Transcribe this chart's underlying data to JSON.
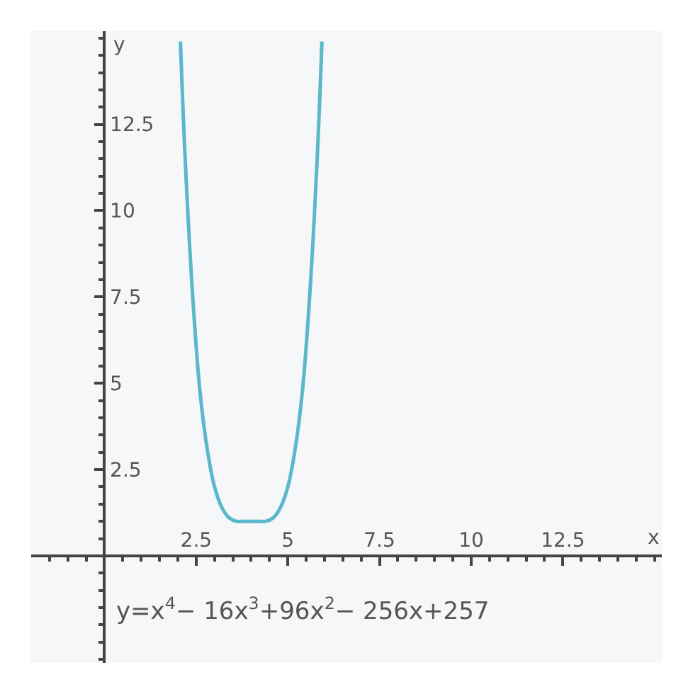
{
  "chart_data": {
    "type": "line",
    "xlabel": "x",
    "ylabel": "y",
    "x": [
      2.07,
      2.2,
      2.4,
      2.6,
      2.8,
      3,
      3.2,
      3.4,
      3.6,
      3.8,
      4,
      4.2,
      4.4,
      4.6,
      4.8,
      5,
      5.2,
      5.4,
      5.6,
      5.8,
      5.93
    ],
    "series": [
      {
        "color": "#5bb8cc",
        "values": [
          14.9,
          11.5,
          7.6,
          4.8,
          3.1,
          2,
          1.4,
          1.1,
          1,
          1,
          1,
          1,
          1,
          1.1,
          1.4,
          2,
          3.1,
          4.8,
          7.6,
          11.5,
          14.9
        ]
      }
    ],
    "xlim": [
      -2,
      15.2
    ],
    "ylim": [
      -3.1,
      15.2
    ],
    "xticks": [
      2.5,
      5,
      7.5,
      10,
      12.5
    ],
    "yticks": [
      2.5,
      5,
      7.5,
      10,
      12.5
    ],
    "marker": "none",
    "line_style": "solid",
    "annotations": [
      "y=x$^{4}$− 16x$^{3}$+96x$^{2}$− 256x+257"
    ]
  }
}
